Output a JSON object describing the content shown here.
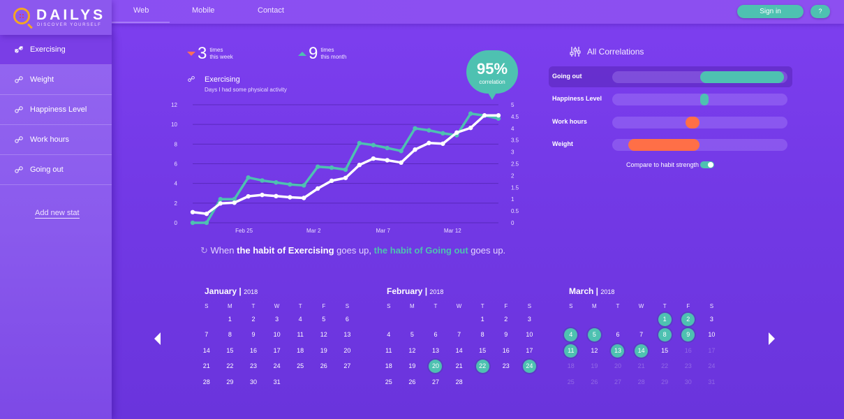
{
  "brand": {
    "name": "DAILYS",
    "tagline": "DISCOVER YOURSELF"
  },
  "nav": {
    "tabs": [
      "Web",
      "Mobile",
      "Contact"
    ],
    "active_tab": "Web",
    "signin": "Sign in",
    "help": "?"
  },
  "sidebar": {
    "items": [
      {
        "label": "Exercising",
        "active": true
      },
      {
        "label": "Weight",
        "active": false
      },
      {
        "label": "Happiness Level",
        "active": false
      },
      {
        "label": "Work hours",
        "active": false
      },
      {
        "label": "Going out",
        "active": false
      }
    ],
    "add_label": "Add new stat"
  },
  "summary": {
    "week": {
      "value": "3",
      "line1": "times",
      "line2": "this week"
    },
    "month": {
      "value": "9",
      "line1": "times",
      "line2": "this month"
    }
  },
  "chart": {
    "title": "Exercising",
    "subtitle": "Days I had some physical activity",
    "correlation_value": "95%",
    "correlation_label": "correlation"
  },
  "chart_data": {
    "type": "line",
    "x_ticks": [
      "Feb 25",
      "Mar 2",
      "Mar 7",
      "Mar 12"
    ],
    "y_left_ticks": [
      "0",
      "2",
      "4",
      "6",
      "8",
      "10",
      "12"
    ],
    "y_right_ticks": [
      "0",
      "0.5",
      "1",
      "1.5",
      "2",
      "2.5",
      "3",
      "3.5",
      "4",
      "4.5",
      "5"
    ],
    "ylim_left": [
      0,
      12
    ],
    "ylim_right": [
      0,
      5
    ],
    "grid": true,
    "series": [
      {
        "color": "#4ec1b1",
        "axis": "left",
        "values": [
          0,
          0,
          2.4,
          2.4,
          4.6,
          4.3,
          4.1,
          3.9,
          3.8,
          5.7,
          5.6,
          5.4,
          8.1,
          7.9,
          7.6,
          7.3,
          9.6,
          9.4,
          9.1,
          8.9,
          11.1,
          10.9,
          10.6
        ]
      },
      {
        "color": "#ffffff",
        "axis": "right",
        "values": [
          0.45,
          0.38,
          0.82,
          0.85,
          1.12,
          1.18,
          1.13,
          1.08,
          1.05,
          1.45,
          1.78,
          1.9,
          2.45,
          2.72,
          2.65,
          2.55,
          3.1,
          3.38,
          3.35,
          3.82,
          4.02,
          4.55,
          4.55
        ]
      }
    ]
  },
  "insight": {
    "p1": "When ",
    "p2": "the habit of Exercising",
    "p3": " goes up, ",
    "p4": "the habit of Going out",
    "p5": " goes up."
  },
  "correlations": {
    "title": "All Correlations",
    "rows": [
      {
        "label": "Going out",
        "start": 0.5,
        "end": 0.98,
        "color": "#4ec1b1",
        "active": true
      },
      {
        "label": "Happiness Level",
        "start": 0.5,
        "end": 0.55,
        "color": "#4ec1b1",
        "active": false
      },
      {
        "label": "Work hours",
        "start": 0.42,
        "end": 0.5,
        "color": "#ff6f47",
        "active": false
      },
      {
        "label": "Weight",
        "start": 0.09,
        "end": 0.5,
        "color": "#ff6f47",
        "active": false
      }
    ],
    "toggle_label": "Compare to habit strength",
    "toggle_on": true
  },
  "calendars": [
    {
      "month": "January",
      "year": "2018",
      "rows": [
        [
          "",
          "1",
          "2",
          "3",
          "4",
          "5",
          "6"
        ],
        [
          "7",
          "8",
          "9",
          "10",
          "11",
          "12",
          "13"
        ],
        [
          "14",
          "15",
          "16",
          "17",
          "18",
          "19",
          "20"
        ],
        [
          "21",
          "22",
          "23",
          "24",
          "25",
          "26",
          "27"
        ],
        [
          "28",
          "29",
          "30",
          "31",
          "",
          "",
          ""
        ]
      ],
      "highlighted": [],
      "dimmed_from": null
    },
    {
      "month": "February",
      "year": "2018",
      "rows": [
        [
          "",
          "",
          "",
          "",
          "1",
          "2",
          "3"
        ],
        [
          "4",
          "5",
          "6",
          "7",
          "8",
          "9",
          "10"
        ],
        [
          "11",
          "12",
          "13",
          "14",
          "15",
          "16",
          "17"
        ],
        [
          "18",
          "19",
          "20",
          "21",
          "22",
          "23",
          "24"
        ],
        [
          "25",
          "26",
          "27",
          "28",
          "",
          "",
          ""
        ]
      ],
      "highlighted": [
        "20",
        "22",
        "24"
      ],
      "dimmed_from": null
    },
    {
      "month": "March",
      "year": "2018",
      "rows": [
        [
          "",
          "",
          "",
          "",
          "1",
          "2",
          "3"
        ],
        [
          "4",
          "5",
          "6",
          "7",
          "8",
          "9",
          "10"
        ],
        [
          "11",
          "12",
          "13",
          "14",
          "15",
          "16",
          "17"
        ],
        [
          "18",
          "19",
          "20",
          "21",
          "22",
          "23",
          "24"
        ],
        [
          "25",
          "26",
          "27",
          "28",
          "29",
          "30",
          "31"
        ]
      ],
      "highlighted": [
        "1",
        "2",
        "4",
        "5",
        "8",
        "9",
        "11",
        "13",
        "14"
      ],
      "dimmed_from": 16
    }
  ],
  "weekdays": [
    "S",
    "M",
    "T",
    "W",
    "T",
    "F",
    "S"
  ]
}
